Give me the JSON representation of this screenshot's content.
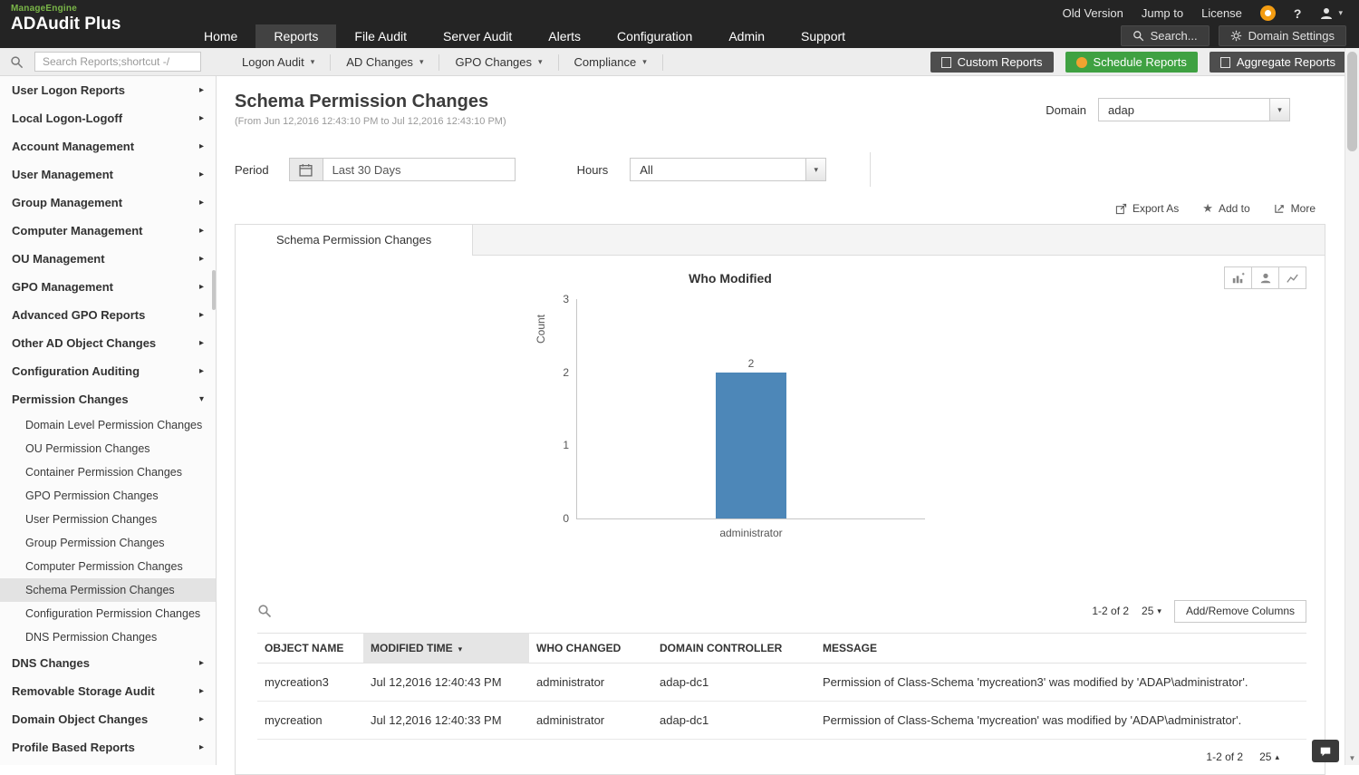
{
  "colors": {
    "topbar_bg": "#242424",
    "accent_green": "#3fa142",
    "bar_blue": "#4d87b8",
    "selected_bg": "#e3e3e3"
  },
  "brand": {
    "company": "ManageEngine",
    "product": "ADAudit Plus"
  },
  "topbar": {
    "links": [
      "Old Version",
      "Jump to",
      "License"
    ],
    "help_icon": "?",
    "nav": [
      {
        "label": "Home"
      },
      {
        "label": "Reports",
        "active": true
      },
      {
        "label": "File Audit"
      },
      {
        "label": "Server Audit"
      },
      {
        "label": "Alerts"
      },
      {
        "label": "Configuration"
      },
      {
        "label": "Admin"
      },
      {
        "label": "Support"
      }
    ],
    "search_button": "Search...",
    "domain_settings_button": "Domain Settings"
  },
  "toolbar": {
    "search_placeholder": "Search Reports;shortcut -/",
    "menus": [
      {
        "label": "Logon Audit"
      },
      {
        "label": "AD Changes"
      },
      {
        "label": "GPO Changes"
      },
      {
        "label": "Compliance"
      }
    ],
    "actions": [
      {
        "label": "Custom Reports",
        "style": "dark"
      },
      {
        "label": "Schedule Reports",
        "style": "green"
      },
      {
        "label": "Aggregate Reports",
        "style": "dark"
      }
    ]
  },
  "sidebar": {
    "items": [
      {
        "label": "User Logon Reports",
        "type": "parent"
      },
      {
        "label": "Local Logon-Logoff",
        "type": "parent"
      },
      {
        "label": "Account Management",
        "type": "parent"
      },
      {
        "label": "User Management",
        "type": "parent"
      },
      {
        "label": "Group Management",
        "type": "parent"
      },
      {
        "label": "Computer Management",
        "type": "parent"
      },
      {
        "label": "OU Management",
        "type": "parent"
      },
      {
        "label": "GPO Management",
        "type": "parent"
      },
      {
        "label": "Advanced GPO Reports",
        "type": "parent"
      },
      {
        "label": "Other AD Object Changes",
        "type": "parent"
      },
      {
        "label": "Configuration Auditing",
        "type": "parent"
      },
      {
        "label": "Permission Changes",
        "type": "parent",
        "expanded": true
      },
      {
        "label": "Domain Level Permission Changes",
        "type": "child"
      },
      {
        "label": "OU Permission Changes",
        "type": "child"
      },
      {
        "label": "Container Permission Changes",
        "type": "child"
      },
      {
        "label": "GPO Permission Changes",
        "type": "child"
      },
      {
        "label": "User Permission Changes",
        "type": "child"
      },
      {
        "label": "Group Permission Changes",
        "type": "child"
      },
      {
        "label": "Computer Permission Changes",
        "type": "child"
      },
      {
        "label": "Schema Permission Changes",
        "type": "child",
        "selected": true
      },
      {
        "label": "Configuration Permission Changes",
        "type": "child"
      },
      {
        "label": "DNS Permission Changes",
        "type": "child"
      },
      {
        "label": "DNS Changes",
        "type": "parent"
      },
      {
        "label": "Removable Storage Audit",
        "type": "parent"
      },
      {
        "label": "Domain Object Changes",
        "type": "parent"
      },
      {
        "label": "Profile Based Reports",
        "type": "parent"
      }
    ]
  },
  "report": {
    "title": "Schema Permission Changes",
    "date_range": "(From Jun 12,2016 12:43:10 PM to Jul 12,2016 12:43:10 PM)",
    "domain_label": "Domain",
    "domain_value": "adap",
    "period_label": "Period",
    "period_value": "Last 30 Days",
    "hours_label": "Hours",
    "hours_value": "All",
    "actions": {
      "export": "Export As",
      "add_to": "Add to",
      "more": "More"
    },
    "tab": "Schema Permission Changes"
  },
  "chart_data": {
    "type": "bar",
    "title": "Who Modified",
    "categories": [
      "administrator"
    ],
    "values": [
      2
    ],
    "xlabel": "",
    "ylabel": "Count",
    "ylim": [
      0,
      3
    ],
    "yticks": [
      0,
      1,
      2,
      3
    ],
    "bar_color": "#4d87b8",
    "grid": false,
    "legend": false
  },
  "table": {
    "pagination": "1-2 of 2",
    "page_size": "25",
    "add_remove_label": "Add/Remove Columns",
    "columns": [
      {
        "label": "OBJECT NAME"
      },
      {
        "label": "MODIFIED TIME",
        "sorted": true
      },
      {
        "label": "WHO CHANGED"
      },
      {
        "label": "DOMAIN CONTROLLER"
      },
      {
        "label": "MESSAGE"
      }
    ],
    "rows": [
      [
        "mycreation3",
        "Jul 12,2016 12:40:43 PM",
        "administrator",
        "adap-dc1",
        "Permission of Class-Schema 'mycreation3' was modified by 'ADAP\\administrator'."
      ],
      [
        "mycreation",
        "Jul 12,2016 12:40:33 PM",
        "administrator",
        "adap-dc1",
        "Permission of Class-Schema 'mycreation' was modified by 'ADAP\\administrator'."
      ]
    ],
    "footer": {
      "pagination": "1-2 of 2",
      "page_size": "25"
    }
  }
}
